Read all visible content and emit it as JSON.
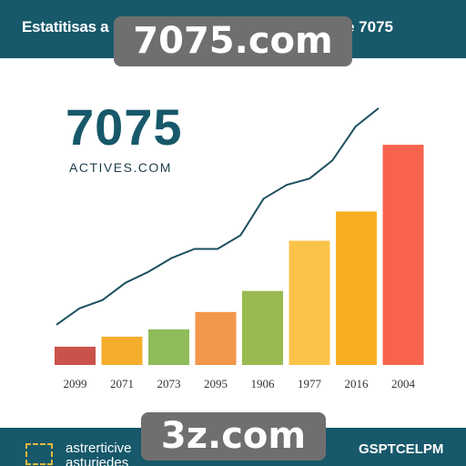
{
  "header": {
    "title_left": "Estatitisas a",
    "title_right": "e 7075"
  },
  "watermarks": {
    "top": "7075.com",
    "bottom": "3z.com"
  },
  "brand": {
    "number": "7075",
    "subtitle": "ACTIVES.COM"
  },
  "footer": {
    "left_line_1": "astrerticive",
    "left_line_2": "asturjedes",
    "right": "GSPTCELPM"
  },
  "colors": {
    "header_bg": "#17586a",
    "line": "#1b4f5e"
  },
  "chart_data": {
    "type": "bar",
    "categories": [
      "2099",
      "2071",
      "2073",
      "2095",
      "1906",
      "1977",
      "2016",
      "2004"
    ],
    "values": [
      20,
      31,
      39,
      58,
      81,
      136,
      168,
      241
    ],
    "colors": [
      "#c9524a",
      "#f4ae2c",
      "#8fbb58",
      "#f2964a",
      "#98ba50",
      "#fcc34a",
      "#f8ae22",
      "#f8634e"
    ],
    "ylim": [
      0,
      260
    ],
    "line_series": {
      "values": [
        44,
        62,
        71,
        90,
        102,
        117,
        127,
        127,
        142,
        182,
        197,
        204,
        224,
        261,
        281
      ],
      "description": ""
    },
    "grid": false,
    "title": "",
    "xlabel": "",
    "ylabel": ""
  }
}
